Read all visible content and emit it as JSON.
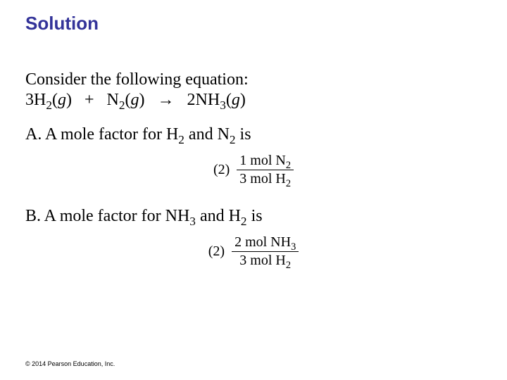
{
  "title": "Solution",
  "intro": "Consider the following equation:",
  "equation": {
    "r1_coef": "3H",
    "r1_sub": "2",
    "r1_phase": "g",
    "plus": "+",
    "r2_coef": "N",
    "r2_sub": "2",
    "r2_phase": "g",
    "arrow": "→",
    "p1_coef": "2NH",
    "p1_sub": "3",
    "p1_phase": "g"
  },
  "itemA": {
    "label": "A.  A mole factor for H",
    "subA": "2",
    "mid": " and N",
    "subB": "2",
    "tail": " is"
  },
  "fracA": {
    "option": "(2)",
    "num_text": "1 mol N",
    "num_sub": "2",
    "den_text": "3 mol H",
    "den_sub": "2"
  },
  "itemB": {
    "label": "B.  A mole factor for NH",
    "subA": "3",
    "mid": " and H",
    "subB": "2",
    "tail": " is"
  },
  "fracB": {
    "option": "(2)",
    "num_text": "2 mol NH",
    "num_sub": "3",
    "den_text": "3 mol H",
    "den_sub": "2"
  },
  "copyright": "© 2014 Pearson Education, Inc.",
  "colors": {
    "title": "#333399",
    "text": "#000000",
    "background": "#ffffff"
  },
  "fonts": {
    "title_family": "Arial",
    "title_size_pt": 20,
    "body_family": "Times New Roman",
    "body_size_pt": 18,
    "fraction_size_pt": 15,
    "copyright_size_pt": 7
  }
}
